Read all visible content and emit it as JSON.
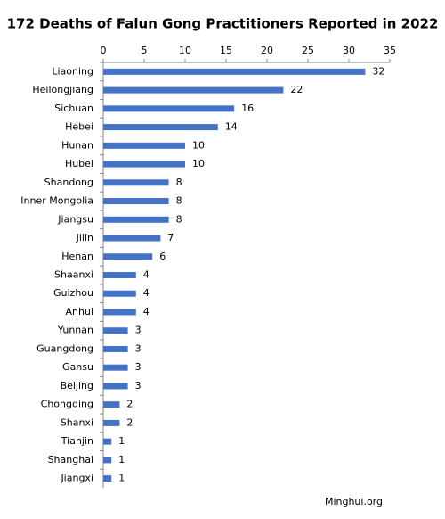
{
  "chart_data": {
    "type": "bar",
    "orientation": "horizontal",
    "title": "172 Deaths of Falun Gong Practitioners Reported in 2022",
    "categories": [
      "Liaoning",
      "Heilongjiang",
      "Sichuan",
      "Hebei",
      "Hunan",
      "Hubei",
      "Shandong",
      "Inner Mongolia",
      "Jiangsu",
      "Jilin",
      "Henan",
      "Shaanxi",
      "Guizhou",
      "Anhui",
      "Yunnan",
      "Guangdong",
      "Gansu",
      "Beijing",
      "Chongqing",
      "Shanxi",
      "Tianjin",
      "Shanghai",
      "Jiangxi"
    ],
    "values": [
      32,
      22,
      16,
      14,
      10,
      10,
      8,
      8,
      8,
      7,
      6,
      4,
      4,
      4,
      3,
      3,
      3,
      3,
      2,
      2,
      1,
      1,
      1
    ],
    "color": "#4472c4",
    "xlim": [
      0,
      35
    ],
    "xticks": [
      0,
      5,
      10,
      15,
      20,
      25,
      30,
      35
    ],
    "grid": false,
    "source": "Minghui.org"
  }
}
